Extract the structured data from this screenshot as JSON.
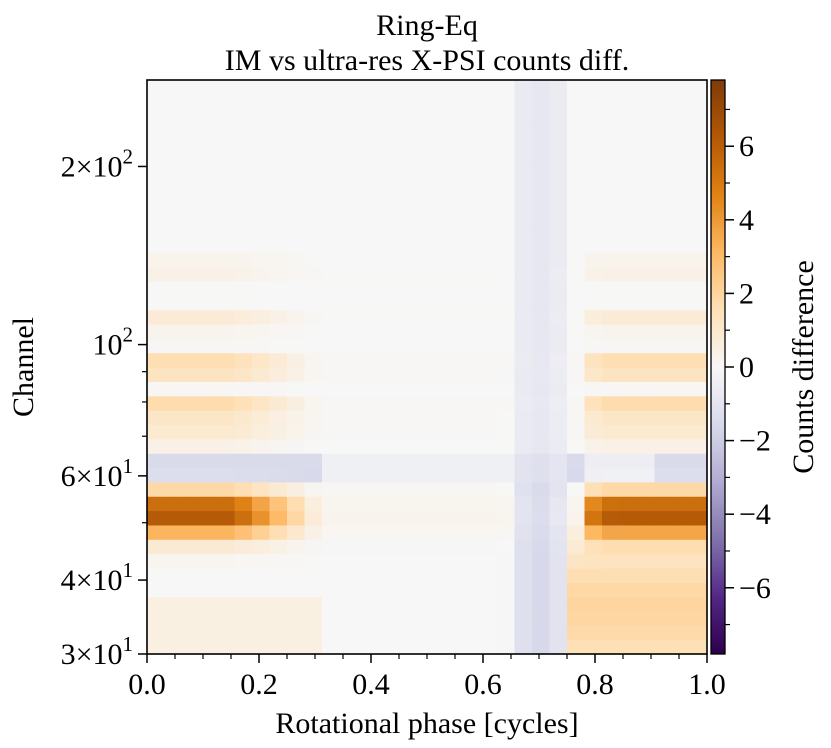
{
  "chart_data": {
    "type": "heatmap",
    "title": "Ring-Eq",
    "subtitle": "IM vs ultra-res X-PSI counts diff.",
    "xlabel": "Rotational phase [cycles]",
    "ylabel": "Channel",
    "xlim": [
      0.0,
      1.0
    ],
    "ylim": [
      30,
      280
    ],
    "yscale": "log",
    "x_ticks": [
      {
        "value": 0.0,
        "label": "0.0"
      },
      {
        "value": 0.2,
        "label": "0.2"
      },
      {
        "value": 0.4,
        "label": "0.4"
      },
      {
        "value": 0.6,
        "label": "0.6"
      },
      {
        "value": 0.8,
        "label": "0.8"
      },
      {
        "value": 1.0,
        "label": "1.0"
      }
    ],
    "y_ticks": [
      {
        "value": 30,
        "mantissa": "3",
        "exponent": "1"
      },
      {
        "value": 40,
        "mantissa": "4",
        "exponent": "1"
      },
      {
        "value": 60,
        "mantissa": "6",
        "exponent": "1"
      },
      {
        "value": 100,
        "mantissa": "",
        "exponent": "2"
      },
      {
        "value": 200,
        "mantissa": "2",
        "exponent": "2"
      }
    ],
    "colorbar": {
      "label": "Counts difference",
      "range": [
        -7.8,
        7.8
      ],
      "ticks": [
        {
          "value": 6,
          "label": "6"
        },
        {
          "value": 4,
          "label": "4"
        },
        {
          "value": 2,
          "label": "2"
        },
        {
          "value": 0,
          "label": "0"
        },
        {
          "value": -2,
          "label": "−2"
        },
        {
          "value": -4,
          "label": "−4"
        },
        {
          "value": -6,
          "label": "−6"
        }
      ],
      "colormap": "PuOr",
      "stops": [
        "#2d004b",
        "#542788",
        "#8073ac",
        "#b2abd2",
        "#d8daeb",
        "#f7f7f7",
        "#fee0b6",
        "#fdb863",
        "#e08214",
        "#b35806",
        "#7f3b08"
      ]
    },
    "grid": {
      "n_phase_bins": 32,
      "n_channel_bins": 40,
      "channel_min": 30,
      "channel_max": 280
    },
    "approximate_features": {
      "bands": [
        {
          "channel": 52,
          "width_ch": 4.5,
          "value": 6.5,
          "phase_profile": "strong near 0.0-0.15 and 0.85-1.0, fading toward 0.25, absent 0.3-0.75"
        },
        {
          "channel": 62,
          "width_ch": 2.5,
          "value": -2.5,
          "phase_profile": "negative except around 0.8-0.9"
        },
        {
          "channel": 70,
          "width_ch": 2.5,
          "value": 1.2,
          "phase_profile": "edges of phase range"
        },
        {
          "channel": 78,
          "width_ch": 3.0,
          "value": 2.4,
          "phase_profile": "edges of phase range"
        },
        {
          "channel": 92,
          "width_ch": 4.0,
          "value": 2.2,
          "phase_profile": "edges of phase range"
        },
        {
          "channel": 110,
          "width_ch": 4.0,
          "value": 0.9,
          "phase_profile": "edges of phase range"
        },
        {
          "channel": 135,
          "width_ch": 5.0,
          "value": 0.6,
          "phase_profile": "edges of phase range"
        }
      ],
      "vertical_negative_stripe": {
        "phase_center": 0.7,
        "phase_width": 0.06,
        "value": -1.6
      },
      "bright_positive_region": {
        "phase_start": 0.76,
        "channel_range": [
          30,
          50
        ],
        "value": 2.0
      }
    }
  }
}
